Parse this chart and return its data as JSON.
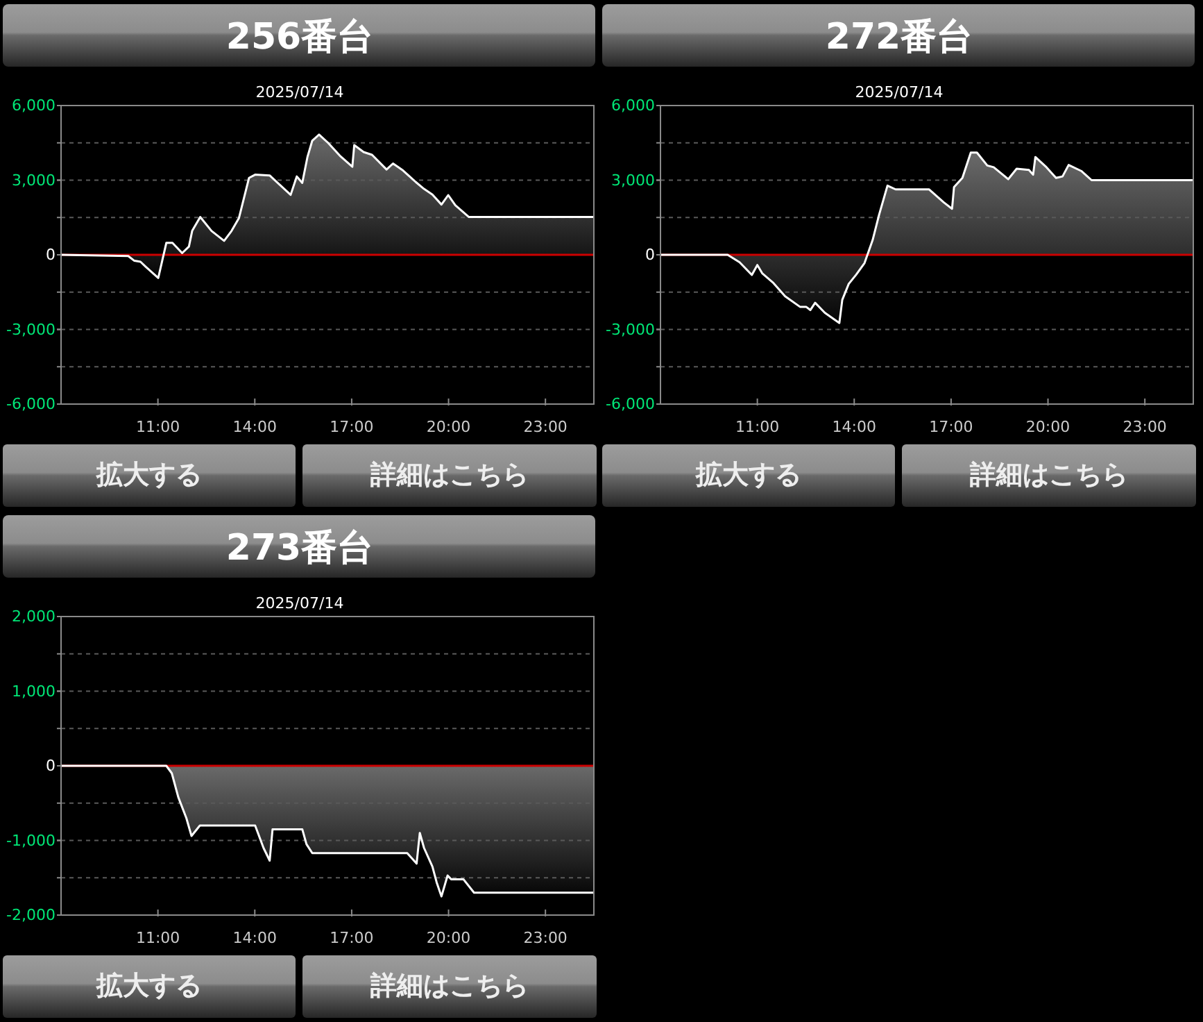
{
  "chart_data": [
    {
      "type": "area",
      "title": "256番台",
      "subtitle": "2025/07/14",
      "annotations": [
        "拡大する",
        "詳細はこちら"
      ],
      "x": [
        8.0,
        10.08,
        10.27,
        10.46,
        10.62,
        11.01,
        11.26,
        11.45,
        11.75,
        11.96,
        12.06,
        12.31,
        12.66,
        13.05,
        13.28,
        13.51,
        13.82,
        14.01,
        14.46,
        15.11,
        15.3,
        15.47,
        15.63,
        15.78,
        15.99,
        16.27,
        16.66,
        17.02,
        17.08,
        17.37,
        17.63,
        18.08,
        18.28,
        18.59,
        18.98,
        19.24,
        19.5,
        19.78,
        19.99,
        20.21,
        20.63,
        24.49
      ],
      "series": [
        {
          "color": "#ffffff",
          "values": [
            0,
            -50,
            -240,
            -280,
            -480,
            -930,
            480,
            480,
            70,
            330,
            960,
            1520,
            960,
            560,
            960,
            1480,
            3090,
            3220,
            3190,
            2410,
            3150,
            2890,
            3930,
            4590,
            4830,
            4500,
            3950,
            3540,
            4410,
            4130,
            4020,
            3430,
            3670,
            3390,
            2930,
            2650,
            2420,
            2020,
            2400,
            1990,
            1520,
            1520
          ]
        }
      ],
      "xlim": [
        8,
        24.5
      ],
      "xticks": [
        {
          "value": 11,
          "label": "11:00"
        },
        {
          "value": 14,
          "label": "14:00"
        },
        {
          "value": 17,
          "label": "17:00"
        },
        {
          "value": 20,
          "label": "20:00"
        },
        {
          "value": 23,
          "label": "23:00"
        }
      ],
      "ylim": [
        -6000,
        6000
      ],
      "yticks": [
        {
          "value": -6000,
          "label": "-6,000"
        },
        {
          "value": -4500,
          "label": null
        },
        {
          "value": -3000,
          "label": "-3,000"
        },
        {
          "value": -1500,
          "label": null
        },
        {
          "value": 0,
          "label": "0"
        },
        {
          "value": 1500,
          "label": null
        },
        {
          "value": 3000,
          "label": "3,000"
        },
        {
          "value": 4500,
          "label": null
        },
        {
          "value": 6000,
          "label": "6,000"
        }
      ],
      "grid": "y",
      "ref_lines": [
        {
          "axis": "y",
          "value": 0,
          "color": "#cc0000"
        }
      ]
    },
    {
      "type": "area",
      "title": "272番台",
      "subtitle": "2025/07/14",
      "annotations": [
        "拡大する",
        "詳細はこちら"
      ],
      "x": [
        8.0,
        10.08,
        10.45,
        10.83,
        11.0,
        11.15,
        11.48,
        11.86,
        12.32,
        12.51,
        12.64,
        12.79,
        13.09,
        13.54,
        13.63,
        13.83,
        14.06,
        14.32,
        14.57,
        14.77,
        15.03,
        15.28,
        16.32,
        16.77,
        17.03,
        17.09,
        17.35,
        17.61,
        17.8,
        18.12,
        18.32,
        18.77,
        19.03,
        19.41,
        19.54,
        19.61,
        19.93,
        20.25,
        20.45,
        20.64,
        21.03,
        21.35,
        24.5
      ],
      "series": [
        {
          "color": "#ffffff",
          "values": [
            0,
            0,
            -300,
            -810,
            -410,
            -740,
            -1110,
            -1670,
            -2090,
            -2090,
            -2220,
            -1930,
            -2330,
            -2740,
            -1810,
            -1170,
            -800,
            -330,
            590,
            1610,
            2780,
            2630,
            2630,
            2110,
            1850,
            2720,
            3090,
            4110,
            4110,
            3590,
            3520,
            3040,
            3460,
            3410,
            3220,
            3930,
            3550,
            3090,
            3150,
            3610,
            3370,
            3000,
            3000
          ]
        }
      ],
      "xlim": [
        8,
        24.5
      ],
      "xticks": [
        {
          "value": 11,
          "label": "11:00"
        },
        {
          "value": 14,
          "label": "14:00"
        },
        {
          "value": 17,
          "label": "17:00"
        },
        {
          "value": 20,
          "label": "20:00"
        },
        {
          "value": 23,
          "label": "23:00"
        }
      ],
      "ylim": [
        -6000,
        6000
      ],
      "yticks": [
        {
          "value": -6000,
          "label": "-6,000"
        },
        {
          "value": -4500,
          "label": null
        },
        {
          "value": -3000,
          "label": "-3,000"
        },
        {
          "value": -1500,
          "label": null
        },
        {
          "value": 0,
          "label": "0"
        },
        {
          "value": 1500,
          "label": null
        },
        {
          "value": 3000,
          "label": "3,000"
        },
        {
          "value": 4500,
          "label": null
        },
        {
          "value": 6000,
          "label": "6,000"
        }
      ],
      "grid": "y",
      "ref_lines": [
        {
          "axis": "y",
          "value": 0,
          "color": "#cc0000"
        }
      ]
    },
    {
      "type": "area",
      "title": "273番台",
      "subtitle": "2025/07/14",
      "annotations": [
        "拡大する",
        "詳細はこちら"
      ],
      "x": [
        8.0,
        11.26,
        11.43,
        11.63,
        11.88,
        12.04,
        12.3,
        14.01,
        14.27,
        14.46,
        14.55,
        15.47,
        15.6,
        15.78,
        18.72,
        19.01,
        19.11,
        19.24,
        19.5,
        19.63,
        19.78,
        19.97,
        20.08,
        20.46,
        20.79,
        24.49
      ],
      "series": [
        {
          "color": "#ffffff",
          "values": [
            0,
            0,
            -100,
            -420,
            -700,
            -940,
            -800,
            -800,
            -1100,
            -1270,
            -850,
            -850,
            -1050,
            -1170,
            -1170,
            -1310,
            -900,
            -1100,
            -1350,
            -1560,
            -1750,
            -1470,
            -1520,
            -1520,
            -1700,
            -1700
          ]
        }
      ],
      "xlim": [
        8,
        24.5
      ],
      "xticks": [
        {
          "value": 11,
          "label": "11:00"
        },
        {
          "value": 14,
          "label": "14:00"
        },
        {
          "value": 17,
          "label": "17:00"
        },
        {
          "value": 20,
          "label": "20:00"
        },
        {
          "value": 23,
          "label": "23:00"
        }
      ],
      "ylim": [
        -2000,
        2000
      ],
      "yticks": [
        {
          "value": -2000,
          "label": "-2,000"
        },
        {
          "value": -1500,
          "label": null
        },
        {
          "value": -1000,
          "label": "-1,000"
        },
        {
          "value": -500,
          "label": null
        },
        {
          "value": 0,
          "label": "0"
        },
        {
          "value": 500,
          "label": null
        },
        {
          "value": 1000,
          "label": "1,000"
        },
        {
          "value": 1500,
          "label": null
        },
        {
          "value": 2000,
          "label": "2,000"
        }
      ],
      "grid": "y",
      "ref_lines": [
        {
          "axis": "y",
          "value": 0,
          "color": "#cc0000"
        }
      ]
    }
  ]
}
